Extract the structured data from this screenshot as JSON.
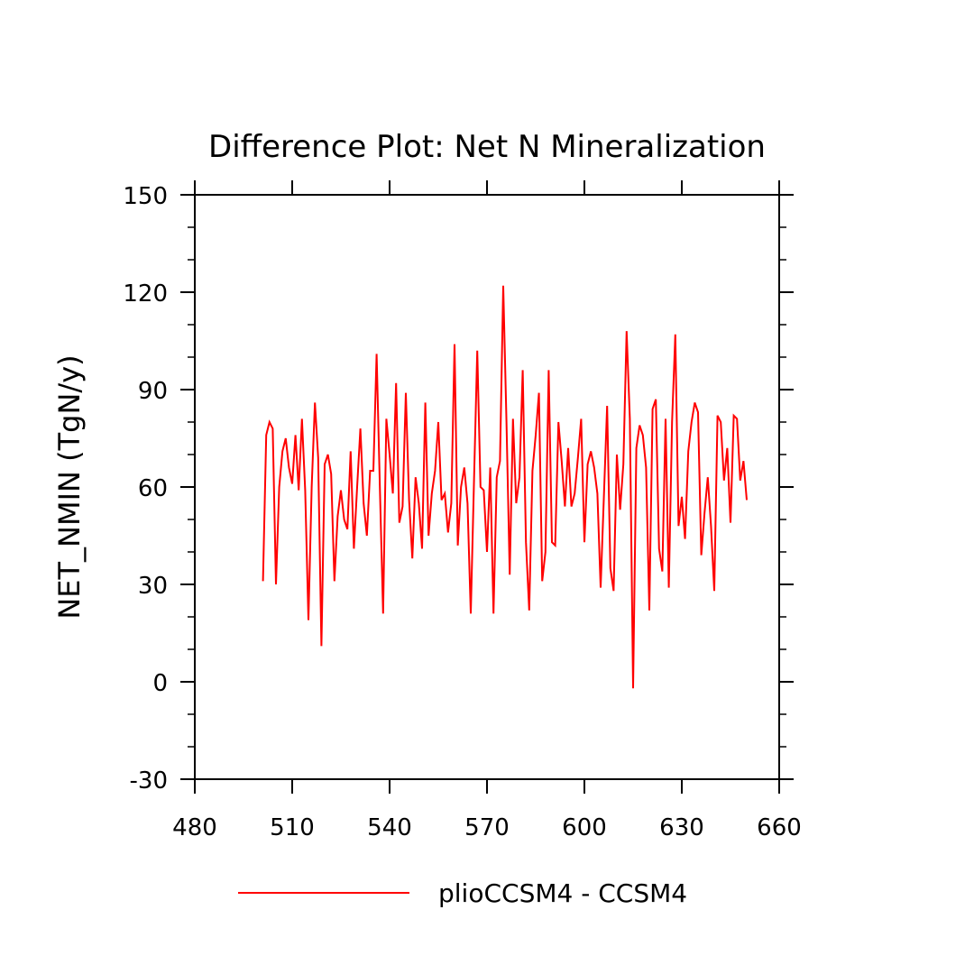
{
  "chart_data": {
    "type": "line",
    "title": "Difference Plot: Net N Mineralization",
    "xlabel": "",
    "ylabel": "NET_NMIN   (TgN/y)",
    "xlim": [
      480,
      660
    ],
    "ylim": [
      -30,
      150
    ],
    "x_ticks": [
      "480",
      "510",
      "540",
      "570",
      "600",
      "630",
      "660"
    ],
    "y_ticks": [
      "-30",
      "0",
      "30",
      "60",
      "90",
      "120",
      "150"
    ],
    "x_tick_values": [
      480,
      510,
      540,
      570,
      600,
      630,
      660
    ],
    "y_tick_values": [
      -30,
      0,
      30,
      60,
      90,
      120,
      150
    ],
    "grid": false,
    "legend_position": "bottom",
    "series": [
      {
        "name": "plioCCSM4 - CCSM4",
        "color": "#ff0000",
        "x": [
          501,
          502,
          503,
          504,
          505,
          506,
          507,
          508,
          509,
          510,
          511,
          512,
          513,
          514,
          515,
          516,
          517,
          518,
          519,
          520,
          521,
          522,
          523,
          524,
          525,
          526,
          527,
          528,
          529,
          530,
          531,
          532,
          533,
          534,
          535,
          536,
          537,
          538,
          539,
          540,
          541,
          542,
          543,
          544,
          545,
          546,
          547,
          548,
          549,
          550,
          551,
          552,
          553,
          554,
          555,
          556,
          557,
          558,
          559,
          560,
          561,
          562,
          563,
          564,
          565,
          566,
          567,
          568,
          569,
          570,
          571,
          572,
          573,
          574,
          575,
          576,
          577,
          578,
          579,
          580,
          581,
          582,
          583,
          584,
          585,
          586,
          587,
          588,
          589,
          590,
          591,
          592,
          593,
          594,
          595,
          596,
          597,
          598,
          599,
          600,
          601,
          602,
          603,
          604,
          605,
          606,
          607,
          608,
          609,
          610,
          611,
          612,
          613,
          614,
          615,
          616,
          617,
          618,
          619,
          620,
          621,
          622,
          623,
          624,
          625,
          626,
          627,
          628,
          629,
          630,
          631,
          632,
          633,
          634,
          635,
          636,
          637,
          638,
          639,
          640,
          641,
          642,
          643,
          644,
          645,
          646,
          647,
          648,
          649,
          650
        ],
        "y": [
          31,
          76,
          80,
          78,
          30,
          60,
          71,
          75,
          66,
          61,
          76,
          59,
          81,
          59,
          19,
          60,
          86,
          69,
          11,
          67,
          70,
          64,
          31,
          51,
          59,
          50,
          47,
          71,
          41,
          60,
          78,
          55,
          45,
          65,
          65,
          101,
          60,
          21,
          81,
          70,
          58,
          92,
          49,
          54,
          89,
          56,
          38,
          63,
          55,
          41,
          86,
          45,
          58,
          65,
          80,
          56,
          58,
          46,
          55,
          104,
          42,
          60,
          66,
          55,
          21,
          62,
          102,
          60,
          59,
          40,
          66,
          21,
          63,
          68,
          122,
          80,
          33,
          81,
          55,
          63,
          96,
          43,
          22,
          65,
          76,
          89,
          31,
          40,
          96,
          43,
          42,
          80,
          68,
          54,
          72,
          54,
          58,
          69,
          81,
          43,
          67,
          71,
          66,
          58,
          29,
          57,
          85,
          35,
          28,
          70,
          53,
          67,
          108,
          81,
          -2,
          72,
          79,
          76,
          66,
          22,
          84,
          87,
          41,
          34,
          81,
          29,
          80,
          107,
          48,
          57,
          44,
          71,
          80,
          86,
          83,
          39,
          52,
          63,
          48,
          28,
          82,
          80,
          62,
          72,
          49,
          82,
          81,
          62,
          68,
          56
        ]
      }
    ]
  }
}
